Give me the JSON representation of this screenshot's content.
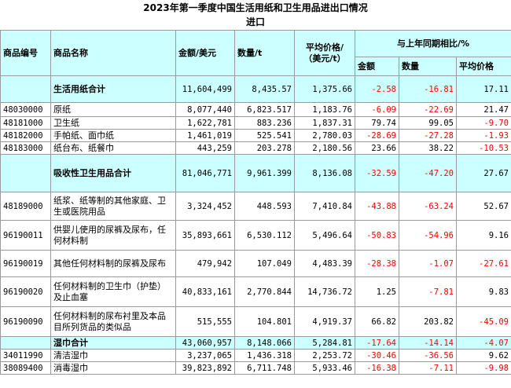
{
  "title": {
    "line1": "2023年第一季度中国生活用纸和卫生用品进出口情况",
    "line2": "进口"
  },
  "headers": {
    "code": "商品编号",
    "name": "商品名称",
    "amount": "金额/美元",
    "quantity": "数量/t",
    "avg_price": "平均价格/（美元/t）",
    "yoy": "与上年同期相比/%",
    "yoy_amount": "金额",
    "yoy_quantity": "数量",
    "yoy_price": "平均价格"
  },
  "rows": [
    {
      "code": "",
      "name": "生活用纸合计",
      "amount": "11,604,499",
      "quantity": "8,435.57",
      "price": "1,375.66",
      "yoy_amount": "-2.58",
      "yoy_quantity": "-16.81",
      "yoy_price": "17.11"
    },
    {
      "code": "48030000",
      "name": "原纸",
      "amount": "8,077,440",
      "quantity": "6,823.517",
      "price": "1,183.76",
      "yoy_amount": "-6.09",
      "yoy_quantity": "-22.69",
      "yoy_price": "21.47"
    },
    {
      "code": "48181000",
      "name": "卫生纸",
      "amount": "1,622,781",
      "quantity": "883.236",
      "price": "1,837.31",
      "yoy_amount": "79.74",
      "yoy_quantity": "99.05",
      "yoy_price": "-9.70"
    },
    {
      "code": "48182000",
      "name": "手帕纸、面巾纸",
      "amount": "1,461,019",
      "quantity": "525.541",
      "price": "2,780.03",
      "yoy_amount": "-28.69",
      "yoy_quantity": "-27.28",
      "yoy_price": "-1.93"
    },
    {
      "code": "48183000",
      "name": "纸台布、纸餐巾",
      "amount": "443,259",
      "quantity": "203.278",
      "price": "2,180.56",
      "yoy_amount": "23.66",
      "yoy_quantity": "38.22",
      "yoy_price": "-10.53"
    },
    {
      "code": "",
      "name": "吸收性卫生用品合计",
      "amount": "81,046,771",
      "quantity": "9,961.399",
      "price": "8,136.08",
      "yoy_amount": "-32.59",
      "yoy_quantity": "-47.20",
      "yoy_price": "27.67"
    },
    {
      "code": "48189000",
      "name": "纸浆、纸等制的其他家庭、卫生或医院用品",
      "amount": "3,324,452",
      "quantity": "448.593",
      "price": "7,410.84",
      "yoy_amount": "-43.88",
      "yoy_quantity": "-63.24",
      "yoy_price": "52.67"
    },
    {
      "code": "96190011",
      "name": "供婴儿使用的尿裤及尿布，任何材料制",
      "amount": "35,893,661",
      "quantity": "6,530.112",
      "price": "5,496.64",
      "yoy_amount": "-50.83",
      "yoy_quantity": "-54.96",
      "yoy_price": "9.16"
    },
    {
      "code": "96190019",
      "name": "其他任何材料制的尿裤及尿布",
      "amount": "479,942",
      "quantity": "107.049",
      "price": "4,483.39",
      "yoy_amount": "-28.38",
      "yoy_quantity": "-1.07",
      "yoy_price": "-27.61"
    },
    {
      "code": "96190020",
      "name": "任何材料制的卫生巾（护垫）及止血塞",
      "amount": "40,833,161",
      "quantity": "2,770.844",
      "price": "14,736.72",
      "yoy_amount": "1.25",
      "yoy_quantity": "-7.81",
      "yoy_price": "9.83"
    },
    {
      "code": "96190090",
      "name": "任何材料制的尿布衬里及本品目所列货品的类似品",
      "amount": "515,555",
      "quantity": "104.801",
      "price": "4,919.37",
      "yoy_amount": "66.82",
      "yoy_quantity": "203.82",
      "yoy_price": "-45.09"
    },
    {
      "code": "",
      "name": "湿巾合计",
      "amount": "43,060,957",
      "quantity": "8,148.066",
      "price": "5,284.81",
      "yoy_amount": "-17.64",
      "yoy_quantity": "-14.14",
      "yoy_price": "-4.07"
    },
    {
      "code": "34011990",
      "name": "清洁湿巾",
      "amount": "3,237,065",
      "quantity": "1,436.318",
      "price": "2,253.72",
      "yoy_amount": "-30.46",
      "yoy_quantity": "-36.56",
      "yoy_price": "9.62"
    },
    {
      "code": "38089400",
      "name": "消毒湿巾",
      "amount": "39,823,892",
      "quantity": "6,711.748",
      "price": "5,933.46",
      "yoy_amount": "-16.38",
      "yoy_quantity": "-7.11",
      "yoy_price": "-9.98"
    }
  ],
  "colors": {
    "total_row_bg": "#ccffff",
    "negative_text": "#ff0000",
    "grid_line": "#9a9a9a"
  }
}
